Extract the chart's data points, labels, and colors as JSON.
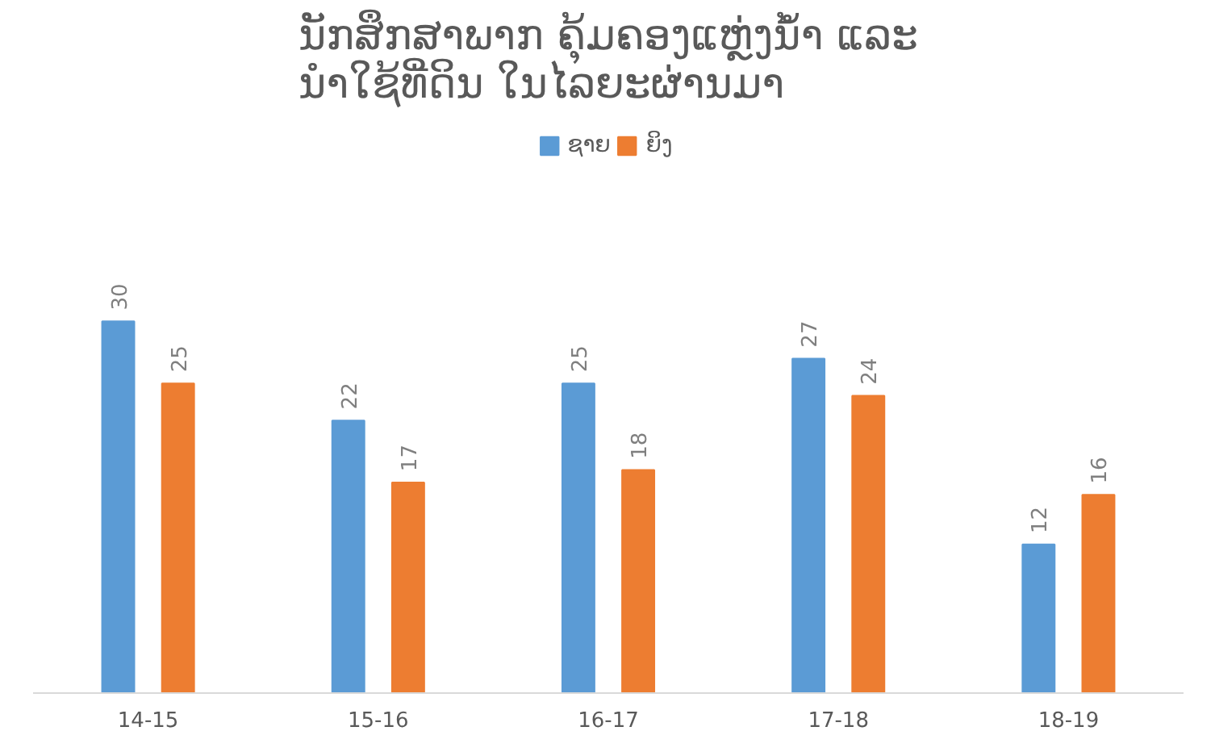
{
  "chart_data": {
    "type": "bar",
    "title": "ນັກສຶກສາພາກ ຄຸ້ມຄອງແຫຼ່ງນ້ຳ ແລະ\nນຳໃຊ້ທີ່ດິນ ໃນໄລຍະຜ່ານມາ",
    "categories": [
      "14-15",
      "15-16",
      "16-17",
      "17-18",
      "18-19"
    ],
    "series": [
      {
        "name": "ຊາຍ",
        "color": "#5b9bd5",
        "values": [
          30,
          22,
          25,
          27,
          12
        ]
      },
      {
        "name": "ຍິງ",
        "color": "#ed7d31",
        "values": [
          25,
          17,
          18,
          24,
          16
        ]
      }
    ],
    "data_labels": true,
    "legend": "top"
  }
}
